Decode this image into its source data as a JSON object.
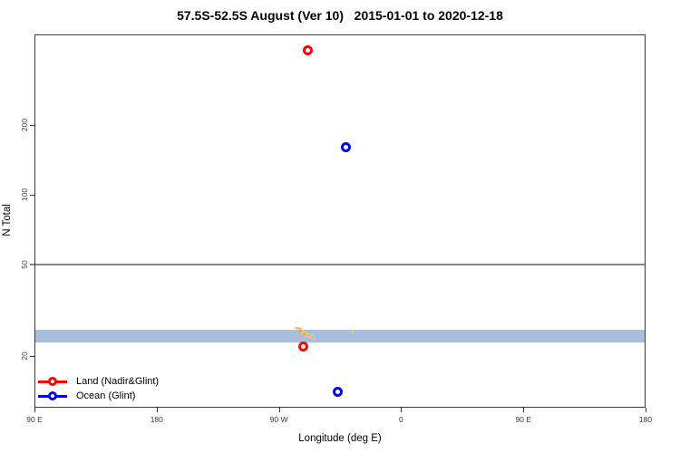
{
  "chart_data": {
    "type": "scatter",
    "title": "57.5S-52.5S August (Ver 10)   2015-01-01 to 2020-12-18",
    "x_axis": {
      "label": "Longitude (deg E)",
      "domain_deg": [
        90,
        540
      ],
      "ticks": [
        {
          "deg": 90,
          "label": "90 E"
        },
        {
          "deg": 180,
          "label": "180"
        },
        {
          "deg": 270,
          "label": "90 W"
        },
        {
          "deg": 360,
          "label": "0"
        },
        {
          "deg": 450,
          "label": "90 E"
        },
        {
          "deg": 540,
          "label": "180"
        }
      ]
    },
    "y_axis": {
      "label": "N Total",
      "scale": "log",
      "domain": [
        12,
        490
      ],
      "ticks": [
        {
          "value": 20,
          "label": "20"
        },
        {
          "value": 50,
          "label": "50"
        },
        {
          "value": 100,
          "label": "100"
        },
        {
          "value": 200,
          "label": "200"
        }
      ]
    },
    "reference_line": {
      "value": 50,
      "color": "#878787"
    },
    "band": {
      "value_min": 23,
      "value_max": 26,
      "color": "#a9bedb"
    },
    "series": [
      {
        "name": "Land (Nadir&Glint)",
        "color": "#ff0000",
        "marker": "open-circle",
        "points": [
          {
            "lon_deg_e": -69,
            "n_total": 420
          },
          {
            "lon_deg_e": -72,
            "n_total": 22
          }
        ]
      },
      {
        "name": "Ocean (Glint)",
        "color": "#0000ff",
        "marker": "open-circle",
        "points": [
          {
            "lon_deg_e": -41,
            "n_total": 160
          },
          {
            "lon_deg_e": -47,
            "n_total": 14
          }
        ]
      }
    ],
    "speckles": [
      {
        "lon": -77.5,
        "n": 26.4,
        "c": "#eec96e"
      },
      {
        "lon": -76.5,
        "n": 26.0,
        "c": "#eec96e"
      },
      {
        "lon": -75.8,
        "n": 26.6,
        "c": "#eec96e"
      },
      {
        "lon": -75.0,
        "n": 25.6,
        "c": "#f2a24d"
      },
      {
        "lon": -74.2,
        "n": 26.2,
        "c": "#eec96e"
      },
      {
        "lon": -73.4,
        "n": 25.2,
        "c": "#eec96e"
      },
      {
        "lon": -72.6,
        "n": 25.8,
        "c": "#eec96e"
      },
      {
        "lon": -71.8,
        "n": 24.8,
        "c": "#f2a24d"
      },
      {
        "lon": -71.0,
        "n": 25.3,
        "c": "#eec96e"
      },
      {
        "lon": -70.2,
        "n": 24.5,
        "c": "#eec96e"
      },
      {
        "lon": -69.4,
        "n": 24.9,
        "c": "#eec96e"
      },
      {
        "lon": -68.4,
        "n": 24.3,
        "c": "#eec96e"
      },
      {
        "lon": -67.2,
        "n": 24.0,
        "c": "#eec96e"
      },
      {
        "lon": -66.0,
        "n": 24.6,
        "c": "#eec96e"
      },
      {
        "lon": -64.5,
        "n": 23.8,
        "c": "#eec96e"
      },
      {
        "lon": -36.2,
        "n": 25.5,
        "c": "#eec96e"
      }
    ],
    "legend": {
      "position": "bottom-left",
      "items": [
        {
          "label": "Land (Nadir&Glint)",
          "color": "#ff0000"
        },
        {
          "label": "Ocean (Glint)",
          "color": "#0000ff"
        }
      ]
    },
    "grid": false
  }
}
